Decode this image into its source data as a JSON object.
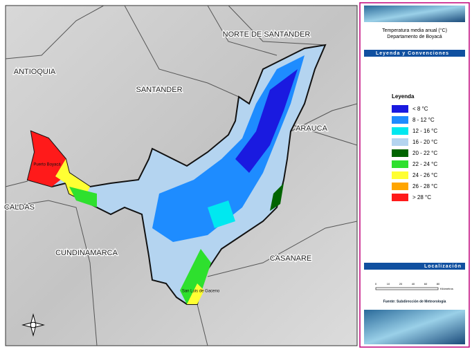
{
  "map": {
    "regions": [
      "NORTE DE SANTANDER",
      "ANTIOQUIA",
      "SANTANDER",
      "ARAUCA",
      "CALDAS",
      "CUNDINAMARCA",
      "CASANARE"
    ],
    "towns": [
      "Puerto Boyacá",
      "San Luis de Gaceno"
    ]
  },
  "panel": {
    "title": "Temperatura media anual (°C)",
    "subtitle": "Departamento de Boyacá",
    "legend_bar": "Leyenda y Convenciones",
    "legend_title": "Leyenda",
    "legend": [
      {
        "label": "< 8 °C",
        "color": "#1a1ae0"
      },
      {
        "label": "8 - 12 °C",
        "color": "#1e8cff"
      },
      {
        "label": "12 - 16 °C",
        "color": "#00e8f0"
      },
      {
        "label": "16 - 20 °C",
        "color": "#b4d4f0"
      },
      {
        "label": "20 - 22 °C",
        "color": "#006400"
      },
      {
        "label": "22 - 24 °C",
        "color": "#2ee02e"
      },
      {
        "label": "24 - 26 °C",
        "color": "#ffff33"
      },
      {
        "label": "26 - 28 °C",
        "color": "#ffa500"
      },
      {
        "label": "> 28 °C",
        "color": "#ff1a1a"
      }
    ],
    "location_bar": "Localización",
    "scale_ticks": [
      "0",
      "10",
      "20",
      "40",
      "60",
      "80"
    ],
    "scale_unit": "Kilómetros",
    "source": "Fuente: Subdirección de Meteorología"
  }
}
